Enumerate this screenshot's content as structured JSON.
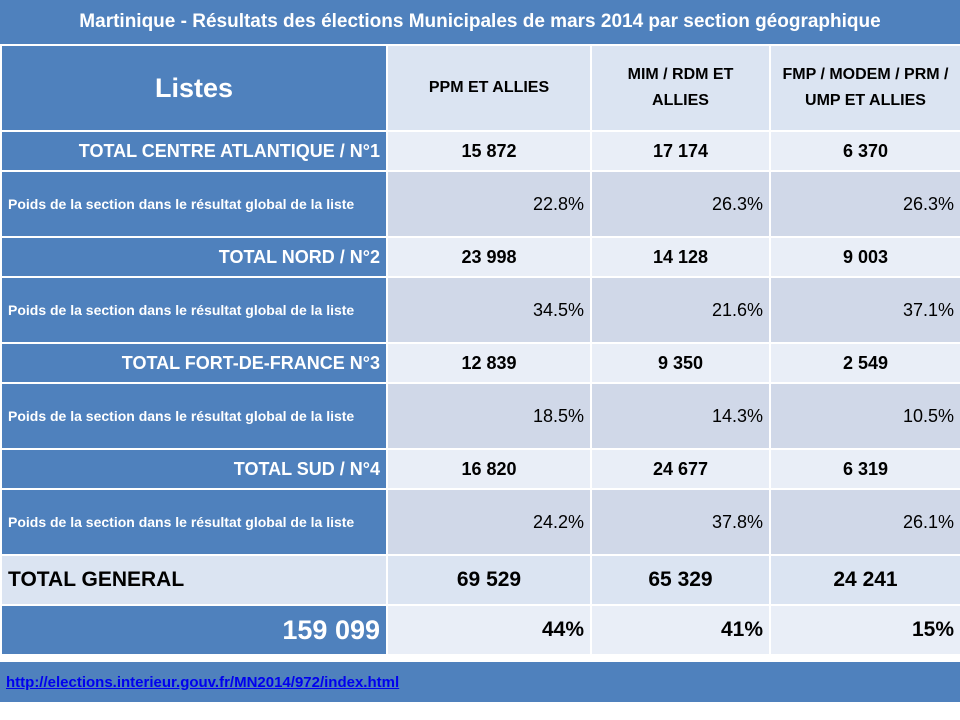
{
  "title": "Martinique - Résultats des élections Municipales  de mars 2014 par section géographique",
  "header": {
    "listes": "Listes",
    "parties": [
      "PPM ET ALLIES",
      "MIM / RDM ET ALLIES",
      "FMP / MODEM / PRM / UMP ET ALLIES"
    ]
  },
  "poids_label": "Poids de la section dans le résultat global de la liste",
  "sections": [
    {
      "label": "TOTAL CENTRE ATLANTIQUE / N°1",
      "values": [
        "15 872",
        "17 174",
        "6 370"
      ],
      "shares": [
        "22.8%",
        "26.3%",
        "26.3%"
      ]
    },
    {
      "label": "TOTAL NORD / N°2",
      "values": [
        "23 998",
        "14 128",
        "9 003"
      ],
      "shares": [
        "34.5%",
        "21.6%",
        "37.1%"
      ]
    },
    {
      "label": "TOTAL FORT-DE-FRANCE N°3",
      "values": [
        "12 839",
        "9 350",
        "2 549"
      ],
      "shares": [
        "18.5%",
        "14.3%",
        "10.5%"
      ]
    },
    {
      "label": "TOTAL SUD / N°4",
      "values": [
        "16 820",
        "24 677",
        "6 319"
      ],
      "shares": [
        "24.2%",
        "37.8%",
        "26.1%"
      ]
    }
  ],
  "total_general": {
    "label": "TOTAL GENERAL",
    "values": [
      "69 529",
      "65 329",
      "24 241"
    ]
  },
  "grand_total": {
    "value": "159 099",
    "shares": [
      "44%",
      "41%",
      "15%"
    ]
  },
  "source_link": "http://elections.interieur.gouv.fr/MN2014/972/index.html"
}
